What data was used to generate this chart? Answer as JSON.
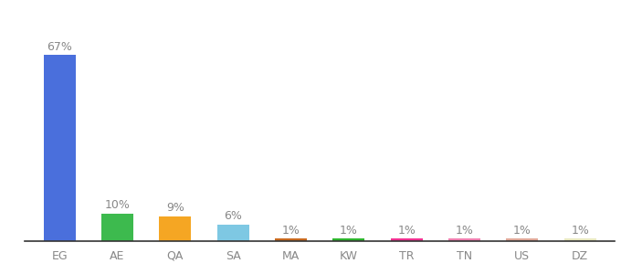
{
  "categories": [
    "EG",
    "AE",
    "QA",
    "SA",
    "MA",
    "KW",
    "TR",
    "TN",
    "US",
    "DZ"
  ],
  "values": [
    67,
    10,
    9,
    6,
    1,
    1,
    1,
    1,
    1,
    1
  ],
  "labels": [
    "67%",
    "10%",
    "9%",
    "6%",
    "1%",
    "1%",
    "1%",
    "1%",
    "1%",
    "1%"
  ],
  "bar_colors": [
    "#4a6fdc",
    "#3dba4e",
    "#f5a623",
    "#7ec8e3",
    "#c8691e",
    "#2db52d",
    "#f03090",
    "#f080b0",
    "#e0a898",
    "#e8e8c0"
  ],
  "background_color": "#ffffff",
  "ylim": [
    0,
    75
  ],
  "label_fontsize": 9,
  "tick_fontsize": 9,
  "bar_width": 0.55
}
